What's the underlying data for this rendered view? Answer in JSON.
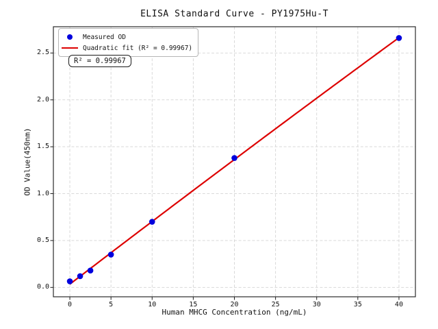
{
  "chart_data": {
    "type": "scatter",
    "title": "ELISA Standard Curve - PY1975Hu-T",
    "xlabel": "Human MHCG Concentration (ng/mL)",
    "ylabel": "OD Value(450nm)",
    "xlim": [
      -2,
      42
    ],
    "ylim": [
      -0.1,
      2.78
    ],
    "xticks": [
      0,
      5,
      10,
      15,
      20,
      25,
      30,
      35,
      40
    ],
    "xticklabels": [
      "0",
      "5",
      "10",
      "15",
      "20",
      "25",
      "30",
      "35",
      "40"
    ],
    "yticks": [
      0.0,
      0.5,
      1.0,
      1.5,
      2.0,
      2.5
    ],
    "yticklabels": [
      "0.0",
      "0.5",
      "1.0",
      "1.5",
      "2.0",
      "2.5"
    ],
    "grid": true,
    "grid_style": "dashed",
    "legend_position": "upper left",
    "series": [
      {
        "name": "Measured OD",
        "type": "scatter",
        "marker": "circle",
        "color": "#0000dd",
        "x": [
          0,
          1.25,
          2.5,
          5,
          10,
          20,
          40
        ],
        "y": [
          0.065,
          0.12,
          0.18,
          0.35,
          0.7,
          1.38,
          2.66
        ]
      },
      {
        "name": "Quadratic fit (R² = 0.99967)",
        "type": "line",
        "color": "#dd0000",
        "fit": "quadratic",
        "fit_of_series": 0,
        "x_range": [
          0,
          40
        ]
      }
    ],
    "annotation": {
      "text": "R² = 0.99967"
    }
  }
}
